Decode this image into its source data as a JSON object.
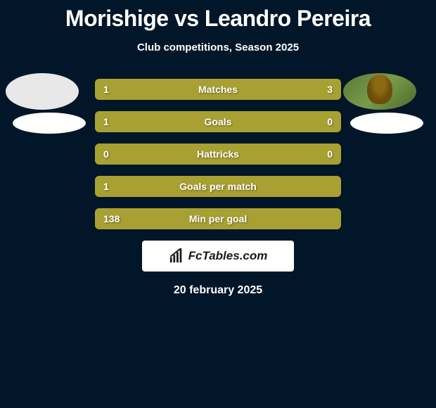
{
  "title": "Morishige vs Leandro Pereira",
  "subtitle": "Club competitions, Season 2025",
  "accent_color": "#a8a032",
  "background_color": "#011629",
  "stats": [
    {
      "label": "Matches",
      "left_value": "1",
      "right_value": "3",
      "left_pct": 25,
      "right_pct": 75,
      "left_color": "#a8a032",
      "right_color": "#a8a032"
    },
    {
      "label": "Goals",
      "left_value": "1",
      "right_value": "0",
      "left_pct": 75,
      "right_pct": 25,
      "left_color": "#a8a032",
      "right_color": "#a8a032"
    },
    {
      "label": "Hattricks",
      "left_value": "0",
      "right_value": "0",
      "left_pct": 100,
      "right_pct": 0,
      "left_color": "#a8a032",
      "right_color": "#a8a032"
    },
    {
      "label": "Goals per match",
      "left_value": "1",
      "right_value": "",
      "left_pct": 100,
      "right_pct": 0,
      "left_color": "#a8a032",
      "right_color": "#a8a032"
    },
    {
      "label": "Min per goal",
      "left_value": "138",
      "right_value": "",
      "left_pct": 100,
      "right_pct": 0,
      "left_color": "#a8a032",
      "right_color": "#a8a032"
    }
  ],
  "logo_text": "FcTables.com",
  "date_text": "20 february 2025",
  "players": {
    "left": {
      "has_photo": false
    },
    "right": {
      "has_photo": true
    }
  }
}
